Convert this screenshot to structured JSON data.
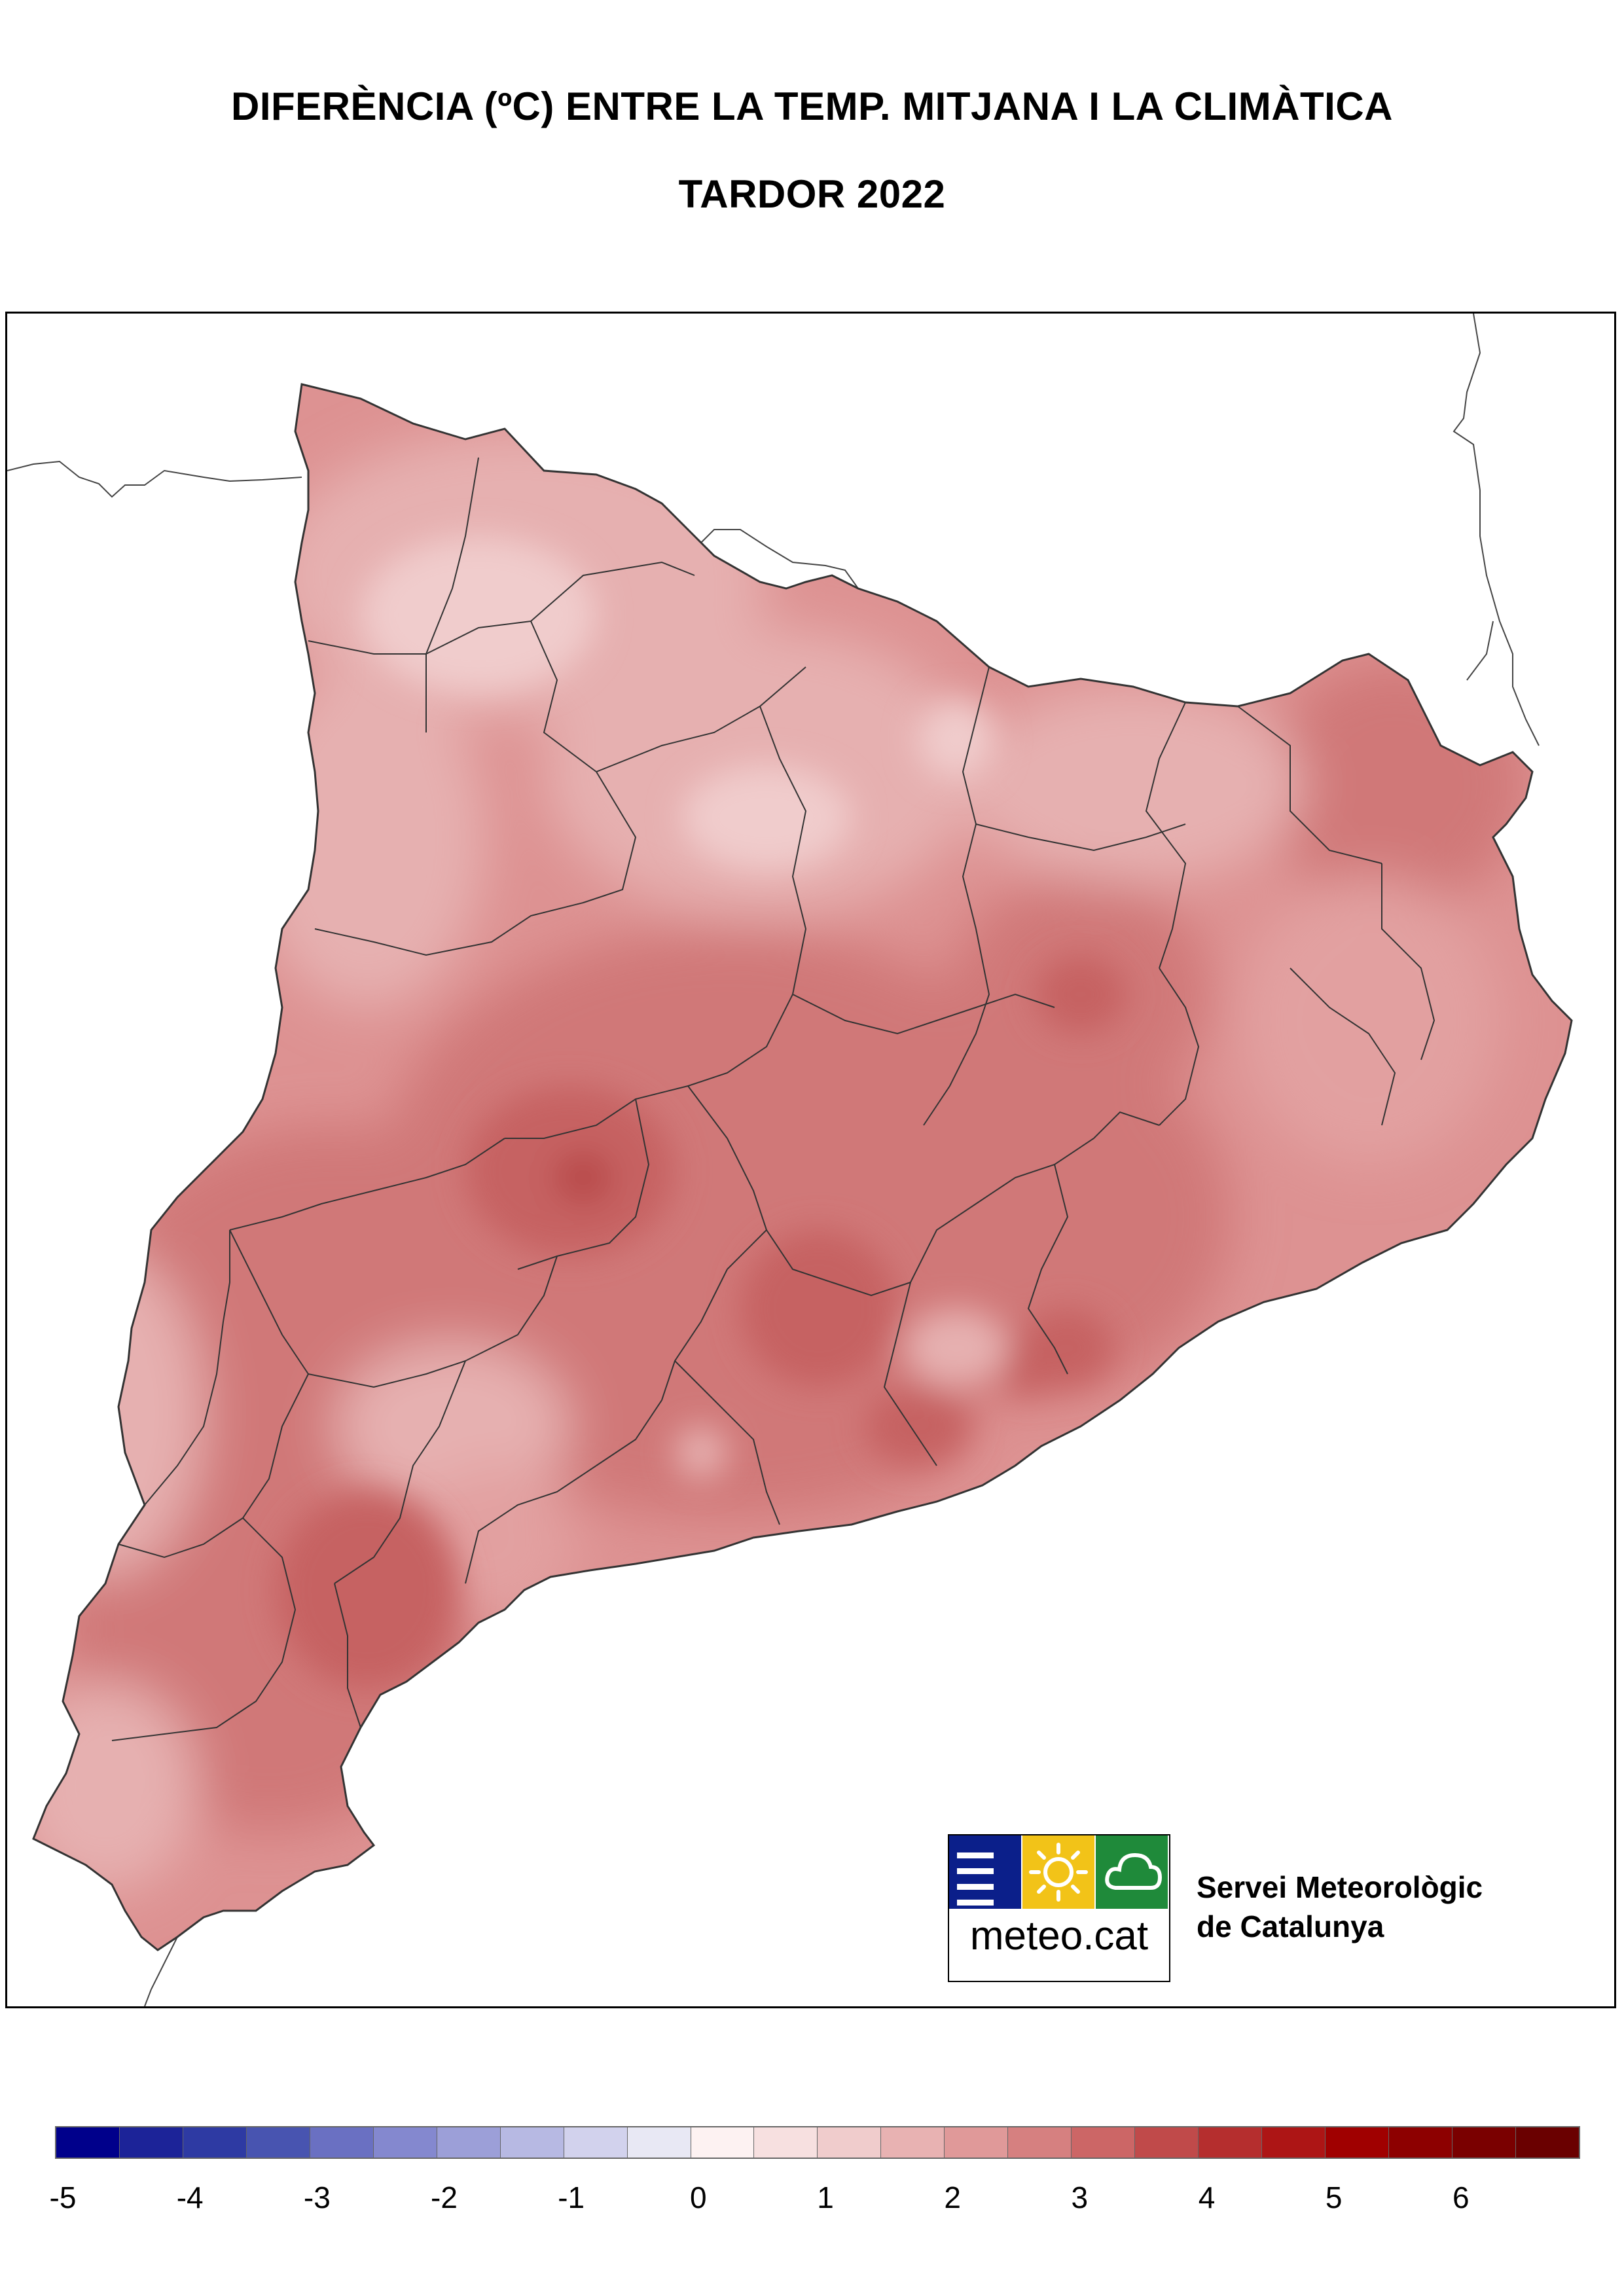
{
  "header": {
    "title": "DIFERÈNCIA (ºC) ENTRE LA TEMP. MITJANA I LA CLIMÀTICA",
    "subtitle": "TARDOR 2022"
  },
  "logo": {
    "icons": [
      "menu-lines-icon",
      "sun-icon",
      "cloud-icon"
    ],
    "colors": [
      "#0b1f8a",
      "#f2c318",
      "#1f8a3a"
    ],
    "brand": "meteo.cat",
    "org_line1": "Servei Meteorològic",
    "org_line2": "de Catalunya"
  },
  "legend": {
    "colors": [
      "#00008b",
      "#1c2398",
      "#2e3aa3",
      "#4854b0",
      "#6a70c2",
      "#8488cf",
      "#9c9fd8",
      "#b7b9e3",
      "#d2d2ed",
      "#e8e8f4",
      "#fdf2f2",
      "#f7e0e0",
      "#f0cccc",
      "#e8b2b2",
      "#e09999",
      "#d68080",
      "#cc6666",
      "#c04a4a",
      "#b52e2e",
      "#ad1515",
      "#a00000",
      "#8d0000",
      "#7a0000",
      "#6a0000"
    ],
    "labels": [
      "-5",
      "-4",
      "-3",
      "-2",
      "-1",
      "0",
      "1",
      "2",
      "3",
      "4",
      "5",
      "6"
    ]
  },
  "map": {
    "region": "Catalunya",
    "palette": {
      "base": "#dd9292",
      "warm": "#d07878",
      "hot": "#c66262",
      "hottest": "#b84a4a",
      "cool": "#e6b0b0",
      "coolest": "#f0cccc",
      "border": "#333333"
    }
  }
}
